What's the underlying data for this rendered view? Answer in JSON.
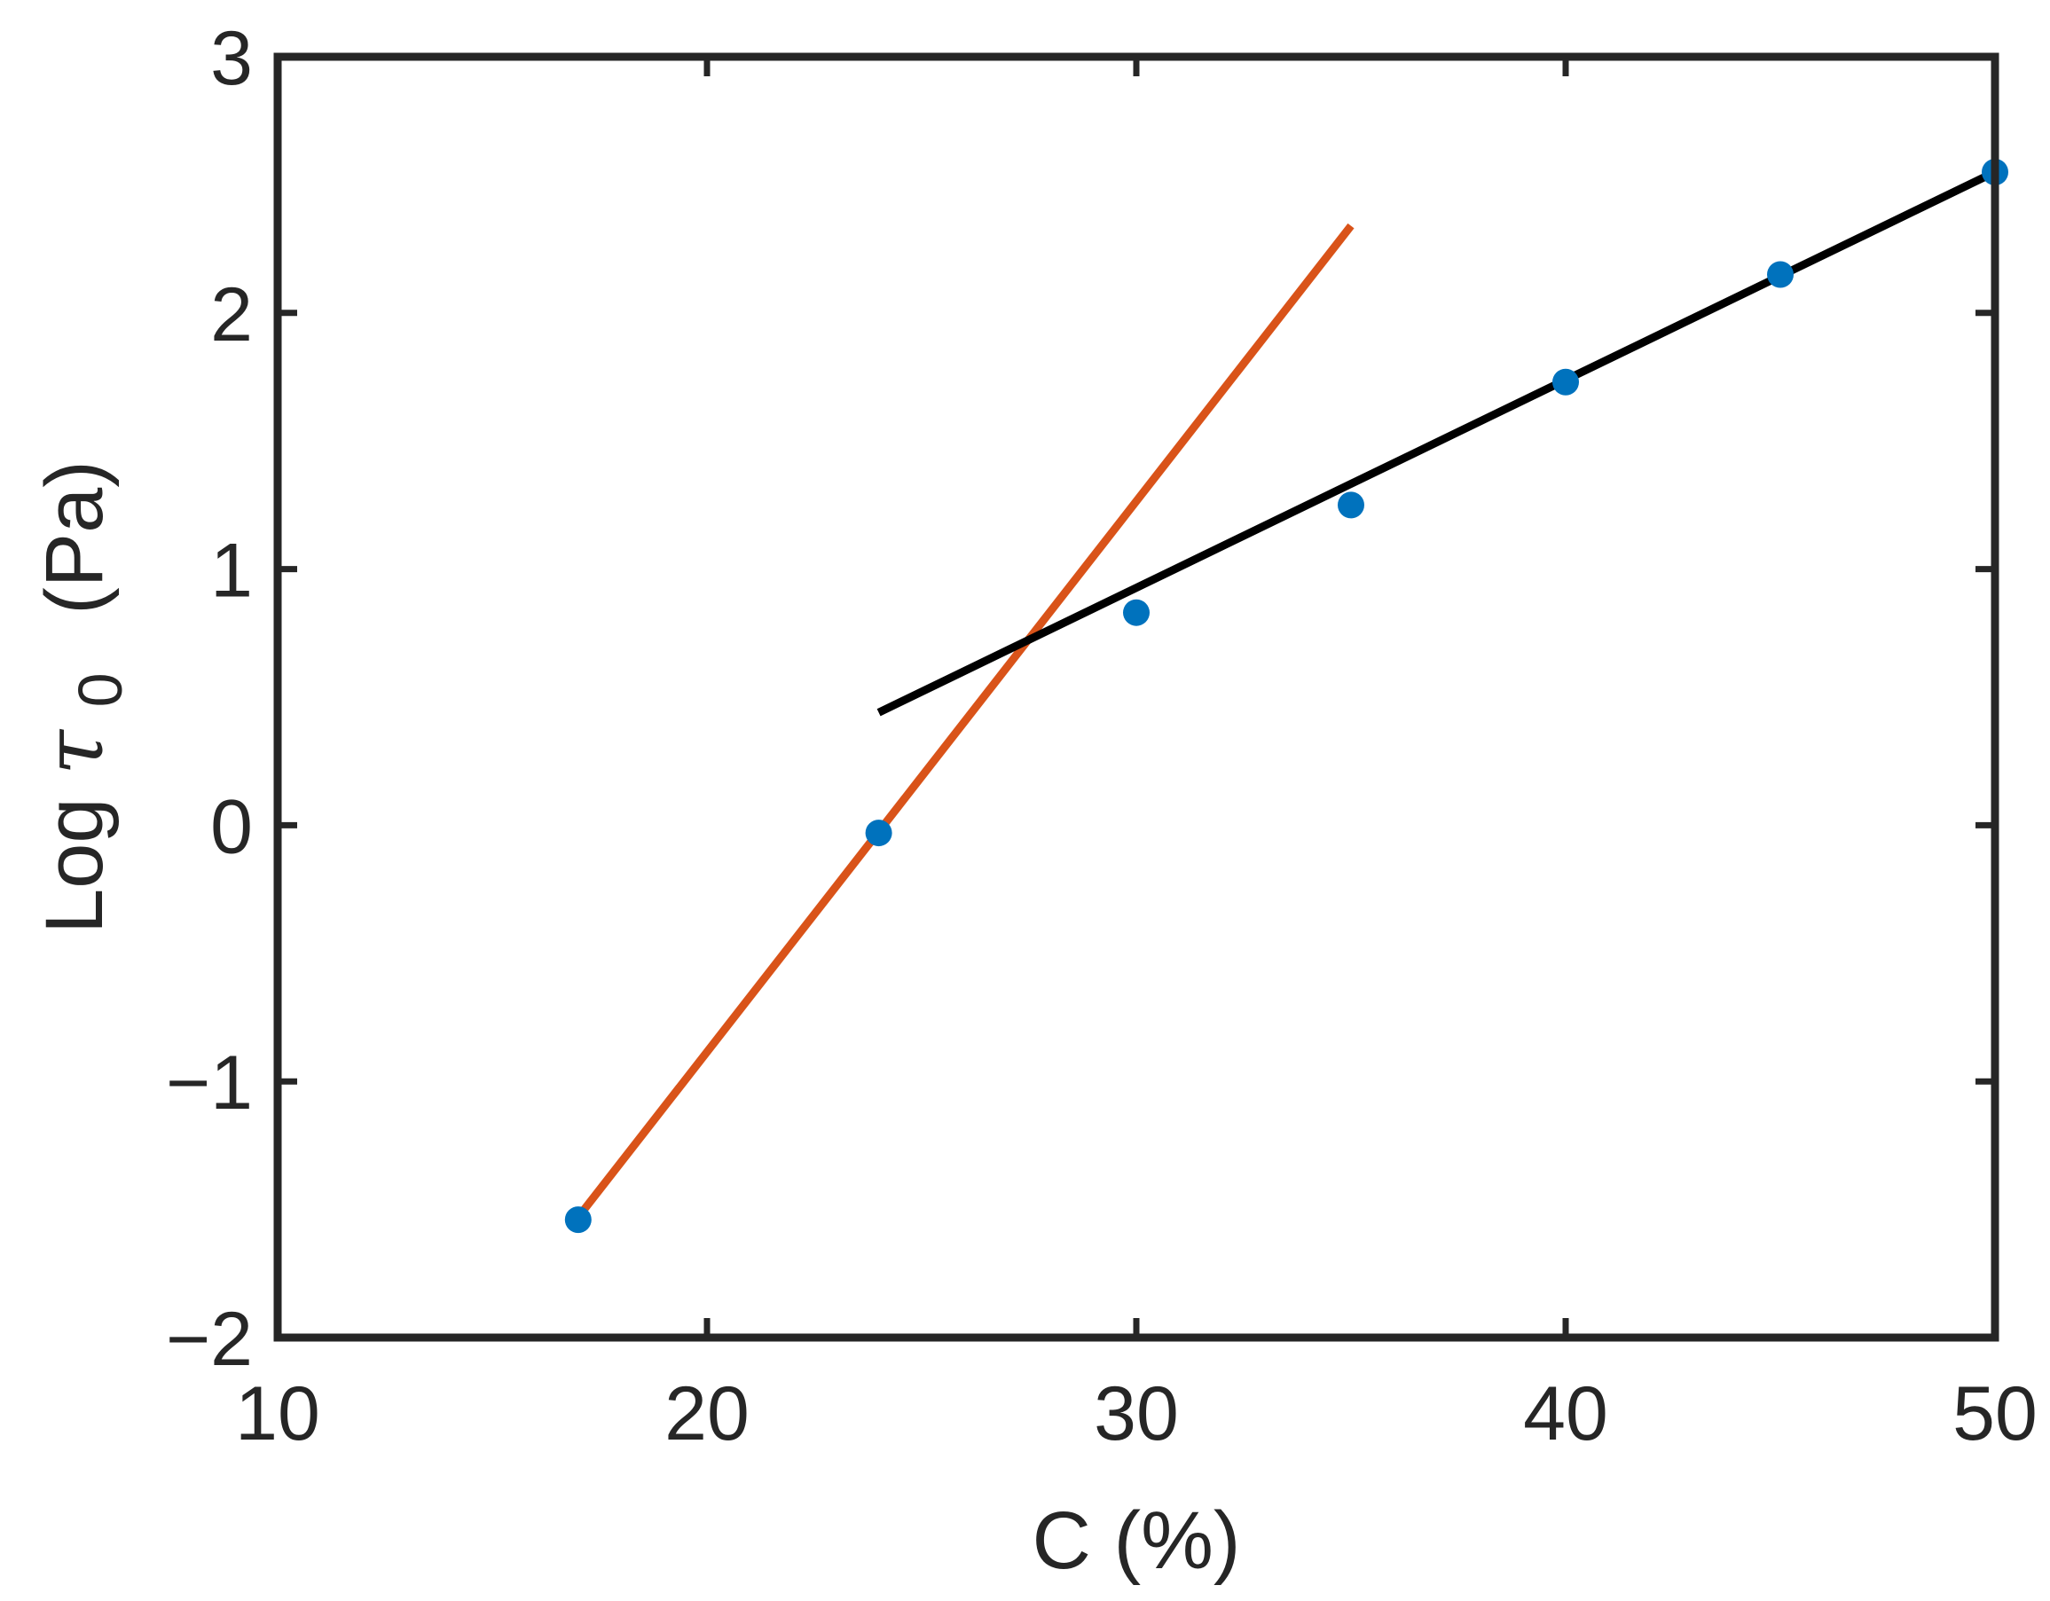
{
  "chart_data": {
    "type": "scatter",
    "title": "",
    "xlabel": "C (%)",
    "ylabel": {
      "prefix": "Log ",
      "symbol": "τ",
      "subscript": "0",
      "units": "(Pa)"
    },
    "xlim": [
      10,
      50
    ],
    "ylim": [
      -2,
      3
    ],
    "xticks": [
      10,
      20,
      30,
      40,
      50
    ],
    "yticks": [
      -2,
      -1,
      0,
      1,
      2,
      3
    ],
    "ytick_labels": [
      "−2",
      "−1",
      "0",
      "1",
      "2",
      "3"
    ],
    "grid": false,
    "box": true,
    "series": [
      {
        "kind": "points",
        "color": "#0072BD",
        "x": [
          17,
          24,
          30,
          35,
          40,
          45,
          50
        ],
        "y": [
          -1.54,
          -0.03,
          0.83,
          1.25,
          1.73,
          2.15,
          2.55
        ]
      },
      {
        "kind": "line",
        "color": "#D95319",
        "x": [
          17,
          35
        ],
        "y": [
          -1.53,
          2.34
        ]
      },
      {
        "kind": "line",
        "color": "#000000",
        "x": [
          24,
          50
        ],
        "y": [
          0.44,
          2.55
        ]
      }
    ]
  }
}
